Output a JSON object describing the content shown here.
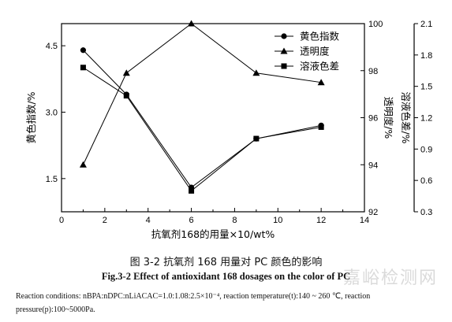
{
  "chart_data": {
    "type": "line",
    "x": [
      1,
      3,
      6,
      9,
      12
    ],
    "xlabel": "抗氧剂168的用量×10/wt%",
    "xlim": [
      0,
      14
    ],
    "xticks": [
      "0",
      "2",
      "4",
      "6",
      "8",
      "10",
      "12",
      "14"
    ],
    "axes": {
      "left": {
        "label": "黄色指数/%",
        "ylim": [
          0.75,
          5.0
        ],
        "ticks": [
          "1.5",
          "3.0",
          "4.5"
        ],
        "tick_values": [
          1.5,
          3.0,
          4.5
        ]
      },
      "right1": {
        "label": "透明度/%",
        "ylim": [
          92,
          100
        ],
        "ticks": [
          "92",
          "94",
          "96",
          "98",
          "100"
        ],
        "tick_values": [
          92,
          94,
          96,
          98,
          100
        ]
      },
      "right2": {
        "label": "溶液色差/%",
        "ylim": [
          0.3,
          2.1
        ],
        "ticks": [
          "0.3",
          "0.6",
          "0.9",
          "1.2",
          "1.5",
          "1.8",
          "2.1"
        ],
        "tick_values": [
          0.3,
          0.6,
          0.9,
          1.2,
          1.5,
          1.8,
          2.1
        ]
      }
    },
    "series": [
      {
        "name": "黄色指数",
        "axis": "left",
        "marker": "circle",
        "values": [
          4.4,
          3.4,
          1.3,
          2.4,
          2.7
        ]
      },
      {
        "name": "透明度",
        "axis": "right1",
        "marker": "triangle",
        "values": [
          94.0,
          97.9,
          100.0,
          97.9,
          97.5
        ]
      },
      {
        "name": "溶液色差",
        "axis": "right2",
        "marker": "square",
        "values": [
          1.68,
          1.41,
          0.5,
          1.0,
          1.11
        ]
      }
    ],
    "legend_position": "top-right"
  },
  "caption_cn": "图 3-2  抗氧剂 168 用量对 PC 颜色的影响",
  "caption_en": "Fig.3-2 Effect of antioxidant 168 dosages on the color of PC",
  "conditions": "Reaction conditions: nBPA:nDPC:nLiACAC=1.0:1.08:2.5×10⁻⁴, reaction temperature(t):140 ~ 260 ℃, reaction pressure(p):100~5000Pa.",
  "watermark": "嘉峪检测网"
}
